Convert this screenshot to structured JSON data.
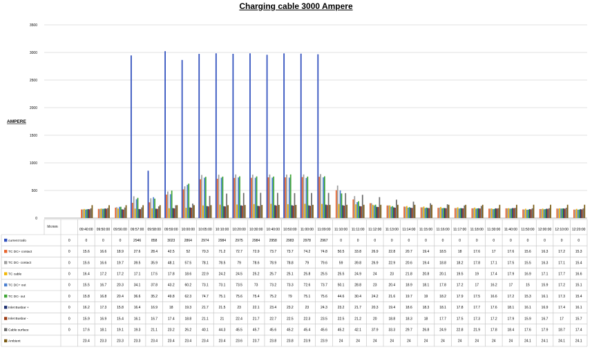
{
  "chart_data": {
    "type": "bar",
    "title": "Charging cable 3000 Ampere",
    "ylabel": "AMPERE",
    "xlabel": "",
    "ylim": [
      0,
      3500
    ],
    "yticks": [
      0,
      500,
      1000,
      1500,
      2000,
      2500,
      3000,
      3500
    ],
    "grid": true,
    "legend_placement": "data-table-left",
    "table_header": "hh:mm",
    "categories": [
      "",
      "09:40:00",
      "09:50:00",
      "09:56:00",
      "09:57:00",
      "09:58:00",
      "09:59:00",
      "10:00:00",
      "10:05:00",
      "10:10:00",
      "10:20:00",
      "10:30:00",
      "10:40:00",
      "10:50:00",
      "11:00:00",
      "11:09:00",
      "11:10:00",
      "11:11:00",
      "11:12:00",
      "11:13:00",
      "11:14:00",
      "11:15:00",
      "11:16:00",
      "11:17:00",
      "11:18:00",
      "11:30:00",
      "11:40:00",
      "11:50:00",
      "12:00:00",
      "12:10:00",
      "12:20:00"
    ],
    "series": [
      {
        "name": "current trafo",
        "color": "#2e4ebd",
        "values": [
          0,
          0,
          0,
          0,
          2946,
          858,
          3023,
          2864,
          2974,
          2984,
          2975,
          2984,
          2958,
          2983,
          2978,
          2967,
          0,
          0,
          0,
          0,
          0,
          0,
          0,
          0,
          0,
          0,
          0,
          0,
          0,
          0,
          0
        ]
      },
      {
        "name": "TC DC+ contact",
        "color": "#e8632b",
        "values": [
          0,
          15.6,
          16.6,
          18.9,
          27.6,
          28.4,
          42.5,
          52,
          70.3,
          71.2,
          72.7,
          72.9,
          73.7,
          73.7,
          74.2,
          74.8,
          50.5,
          33.8,
          26.9,
          22.8,
          20.7,
          19.4,
          18.5,
          18,
          17.6,
          17,
          17.6,
          15.6,
          16.3,
          17.2,
          15.3
        ]
      },
      {
        "name": "TC DC- contact",
        "color": "#9e9e9e",
        "values": [
          0,
          15.6,
          16.6,
          19.7,
          39.5,
          35.9,
          48.1,
          57.5,
          78.1,
          78.5,
          79,
          78.6,
          78.9,
          78.8,
          79,
          79.6,
          59,
          39.8,
          26.9,
          22.9,
          20.6,
          19.4,
          18.8,
          18.2,
          17.8,
          17.1,
          17.5,
          15.5,
          16.3,
          17.1,
          15.4
        ]
      },
      {
        "name": "TC cable",
        "color": "#f2b705",
        "values": [
          0,
          16.4,
          17.2,
          17.2,
          17.1,
          17.5,
          17.8,
          18.6,
          22.9,
          24.2,
          24.5,
          25.2,
          25.7,
          25.1,
          25.8,
          25.5,
          25.5,
          24.9,
          24,
          23,
          21.8,
          20.8,
          20.1,
          19.5,
          19,
          17.4,
          17.9,
          16.9,
          17.1,
          17.7,
          16.6
        ]
      },
      {
        "name": "TC DC+ out",
        "color": "#4a7fd0",
        "values": [
          0,
          15.5,
          16.7,
          20.3,
          34.1,
          37.8,
          43.2,
          60.2,
          73.1,
          73.1,
          73.5,
          73,
          73.2,
          73.3,
          72.6,
          73.7,
          50.1,
          28.8,
          23,
          20.4,
          18.9,
          18.1,
          17.8,
          17.2,
          17,
          16.2,
          17,
          15,
          15.9,
          17.2,
          15.1
        ]
      },
      {
        "name": "TC DC- out",
        "color": "#3fa535",
        "values": [
          0,
          15.8,
          16.8,
          20.4,
          36.6,
          35.2,
          49.8,
          62.3,
          74.7,
          75.1,
          75.6,
          75.4,
          75.2,
          79,
          75.1,
          75.6,
          44.6,
          30.4,
          24.2,
          21.6,
          19.7,
          19,
          18.2,
          17.9,
          17.5,
          16.6,
          17.2,
          15.3,
          16.1,
          17.3,
          15.4
        ]
      },
      {
        "name": "Inlet Busbar +",
        "color": "#1d2f6f",
        "values": [
          0,
          16.2,
          17.3,
          15.8,
          16.4,
          16.9,
          18,
          19.3,
          21.7,
          21.5,
          23,
          22.1,
          23.4,
          23.2,
          23,
          24.3,
          23.2,
          21.7,
          20.3,
          19.4,
          18.6,
          18.3,
          18.1,
          17.8,
          17.7,
          17.6,
          18.1,
          16.1,
          16.9,
          17.4,
          16.1
        ]
      },
      {
        "name": "Inlet Busbar -",
        "color": "#9b3a12",
        "values": [
          0,
          15.9,
          16.9,
          15.4,
          16.1,
          16.7,
          17.4,
          18.8,
          21.1,
          21,
          22.4,
          21.7,
          22.7,
          22.5,
          22.3,
          23.5,
          22.5,
          21.2,
          20,
          18.8,
          18.3,
          18,
          17.7,
          17.5,
          17.3,
          17.2,
          17.9,
          15.9,
          16.7,
          17,
          15.7
        ]
      },
      {
        "name": "Cable surface",
        "color": "#6b6b6b",
        "values": [
          0,
          17.6,
          18.1,
          19.1,
          19.3,
          21.1,
          23.2,
          26.2,
          40.1,
          44.3,
          45.5,
          45.7,
          45.6,
          45.2,
          45.4,
          45.6,
          45.2,
          42.1,
          37.9,
          33.3,
          29.7,
          26.8,
          24.9,
          22.8,
          21.9,
          17.8,
          18.4,
          17.6,
          17.9,
          18.7,
          17.4
        ]
      },
      {
        "name": "Ambient",
        "color": "#7a5a12",
        "values": [
          null,
          23.4,
          23.3,
          23.3,
          23.3,
          23.4,
          23.4,
          23.4,
          23.4,
          23.4,
          23.6,
          23.7,
          23.8,
          23.8,
          23.9,
          23.9,
          24,
          24,
          24,
          24,
          24,
          24,
          24,
          24,
          24,
          24,
          24,
          24.1,
          24.1,
          24.1,
          24.1
        ]
      }
    ]
  }
}
